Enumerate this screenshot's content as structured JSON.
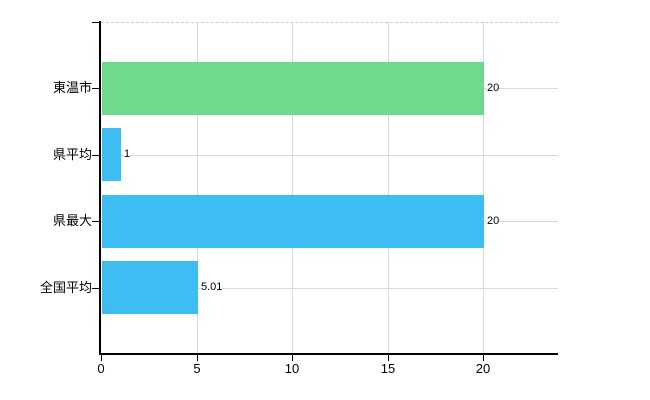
{
  "chart_data": {
    "type": "bar",
    "orientation": "horizontal",
    "title": "",
    "categories": [
      "東温市",
      "県平均",
      "県最大",
      "全国平均"
    ],
    "values": [
      20,
      1,
      20,
      5.01
    ],
    "value_labels": [
      "20",
      "1",
      "20",
      "5.01"
    ],
    "x_tick_labels": [
      "0",
      "5",
      "10",
      "15",
      "20"
    ],
    "x_tick_values": [
      0,
      5,
      10,
      15,
      20
    ],
    "xlim": [
      0,
      23.9
    ],
    "grid": true,
    "legend": "none",
    "colors": {
      "bars": [
        "#6fd98c",
        "#3ebdf2",
        "#3ebdf2",
        "#3ebdf2"
      ],
      "grid": "#d9d9d9",
      "top_border": "#cccccc",
      "axis": "#000000",
      "text": "#000000",
      "background": "#ffffff"
    }
  }
}
